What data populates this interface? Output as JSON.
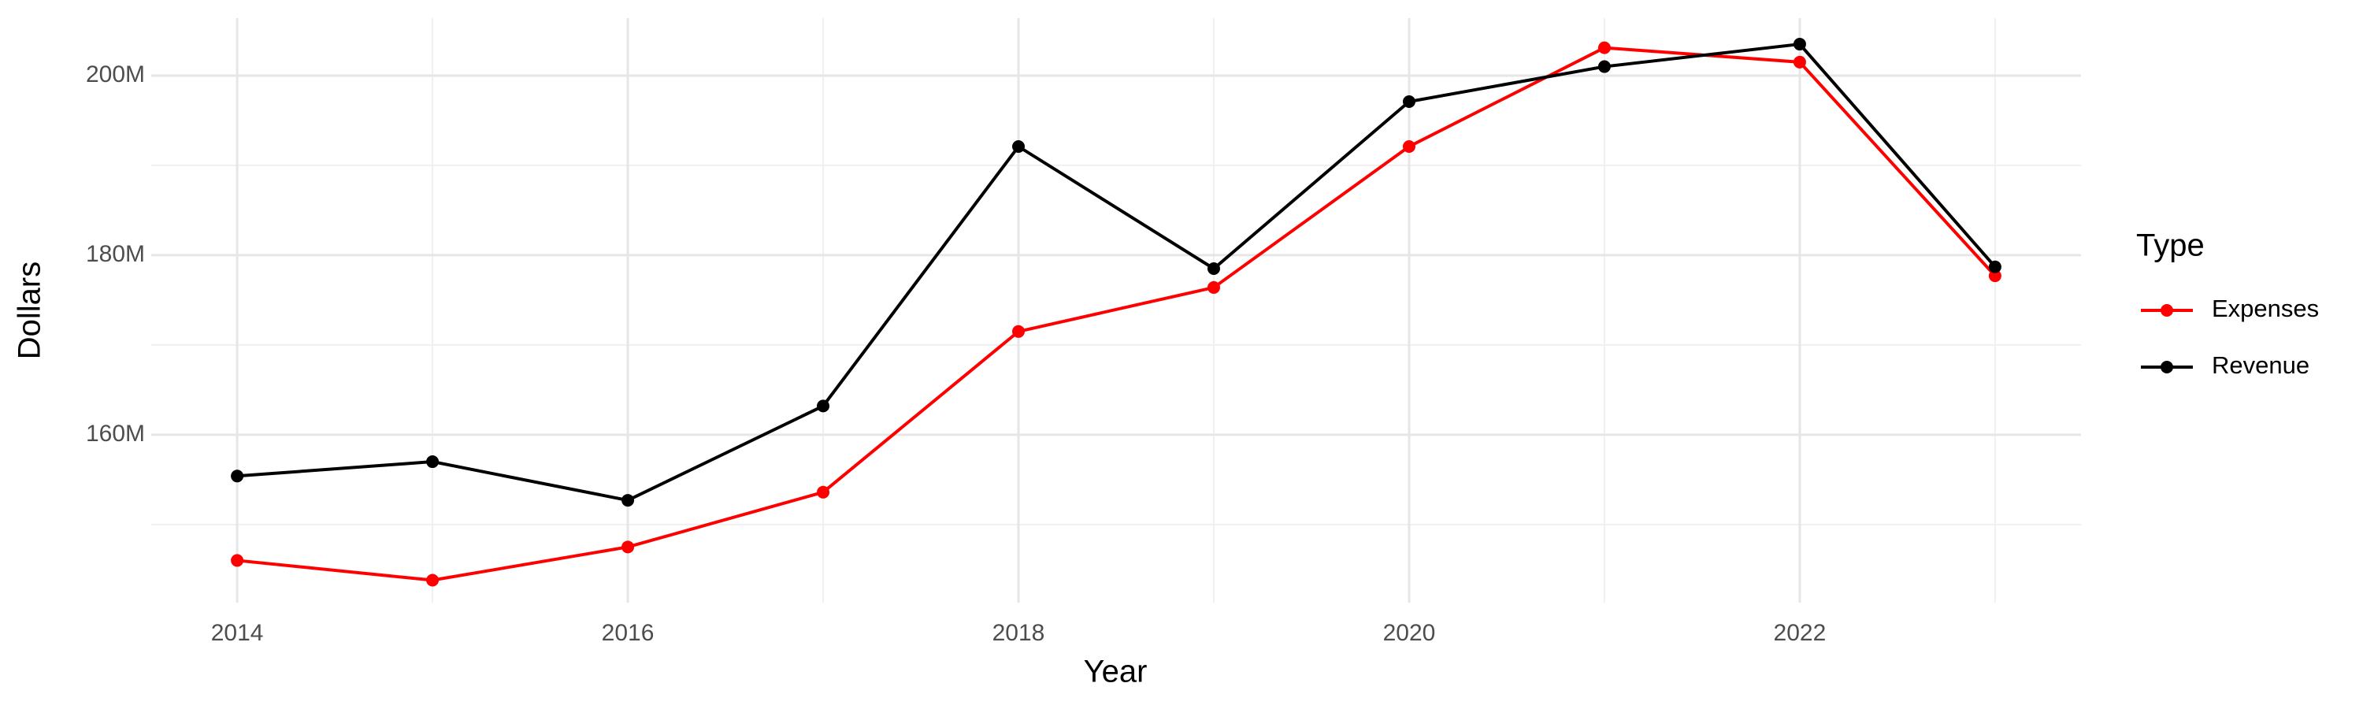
{
  "chart_data": {
    "type": "line",
    "x_label": "Year",
    "y_label": "Dollars",
    "legend_title": "Type",
    "x": [
      2014,
      2015,
      2016,
      2017,
      2018,
      2019,
      2020,
      2021,
      2022,
      2023
    ],
    "series": [
      {
        "name": "Expenses",
        "color": "#ff0000",
        "values": [
          146000000,
          143800000,
          147500000,
          153600000,
          171500000,
          176400000,
          192100000,
          203100000,
          201500000,
          177700000
        ]
      },
      {
        "name": "Revenue",
        "color": "#000000",
        "values": [
          155400000,
          157000000,
          152700000,
          163200000,
          192100000,
          178500000,
          197100000,
          201000000,
          203500000,
          178700000
        ]
      }
    ],
    "xlim": [
      2013.56,
      2023.44
    ],
    "xticks": [
      2014,
      2016,
      2018,
      2020,
      2022
    ],
    "ylim": [
      141300000,
      206400000
    ],
    "yticks": [
      {
        "value": 160000000,
        "label": "160M"
      },
      {
        "value": 180000000,
        "label": "180M"
      },
      {
        "value": 200000000,
        "label": "200M"
      }
    ],
    "grid": true,
    "legend_position": "right"
  }
}
